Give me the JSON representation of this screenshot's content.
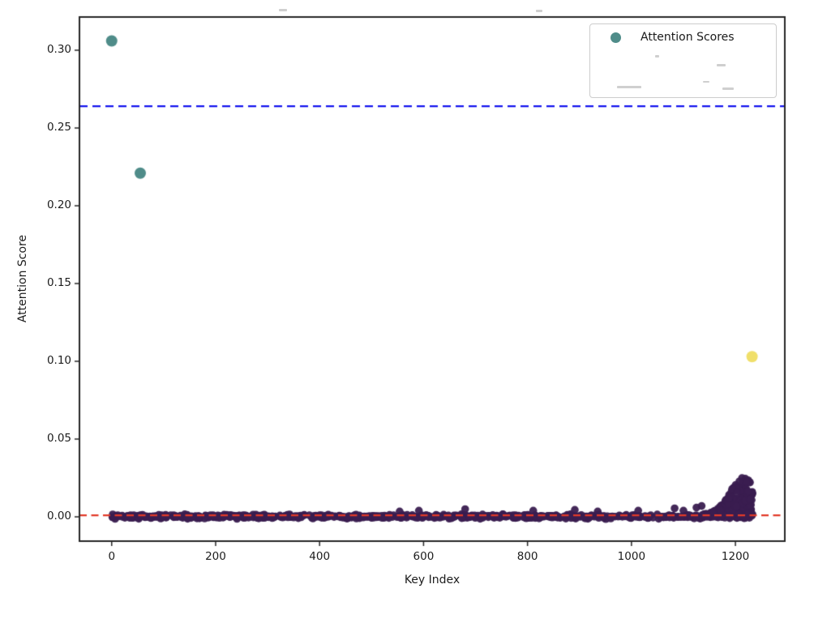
{
  "chart_data": {
    "type": "scatter",
    "title": "",
    "xlabel": "Key Index",
    "ylabel": "Attention Score",
    "xlim": [
      -62,
      1295
    ],
    "ylim": [
      -0.0156,
      0.3214
    ],
    "grid": false,
    "xticks": [
      0,
      200,
      400,
      600,
      800,
      1000,
      1200
    ],
    "xticklabels": [
      "0",
      "200",
      "400",
      "600",
      "800",
      "1000",
      "1200"
    ],
    "yticks": [
      0.0,
      0.05,
      0.1,
      0.15,
      0.2,
      0.25,
      0.3
    ],
    "yticklabels": [
      "0.00",
      "0.05",
      "0.10",
      "0.15",
      "0.20",
      "0.25",
      "0.30"
    ],
    "legend": {
      "position": "upper right",
      "entries": [
        {
          "label": "Attention Scores",
          "marker": "circle",
          "color": "#4f8c89"
        }
      ]
    },
    "threshold_lines": [
      {
        "y": 0.264,
        "style": "dashed",
        "color": "#1414ee"
      },
      {
        "y": 0.001,
        "style": "dashed",
        "color": "#e23a28"
      }
    ],
    "outlier_points": [
      {
        "x": 0,
        "y": 0.306,
        "color": "#4f8c89"
      },
      {
        "x": 55,
        "y": 0.221,
        "color": "#4f8c89"
      },
      {
        "x": 1232,
        "y": 0.103,
        "color": "#f0df6a"
      }
    ],
    "mid_bumps": [
      [
        554,
        0.0035
      ],
      [
        591,
        0.004
      ],
      [
        680,
        0.005
      ],
      [
        811,
        0.004
      ],
      [
        891,
        0.0045
      ],
      [
        935,
        0.0035
      ],
      [
        1013,
        0.004
      ],
      [
        1083,
        0.0055
      ],
      [
        1100,
        0.004
      ],
      [
        1125,
        0.006
      ],
      [
        1135,
        0.007
      ]
    ],
    "dense_cluster": {
      "seed": 42,
      "band": {
        "count": 680,
        "x_min": 0,
        "x_max": 1232,
        "y_center": 0.0002,
        "y_amplitude": 0.0018
      },
      "tail": {
        "count": 270,
        "x_min": 1138,
        "x_max": 1233,
        "peak_x": 1216,
        "peak_amp": 0.0245,
        "sigma": 26,
        "base": 0.0015
      }
    },
    "colors": {
      "cluster": "#3a1d50",
      "outlier_teal": "#4f8c89",
      "outlier_yellow": "#f0df6a",
      "threshold_blue": "#1414ee",
      "threshold_red": "#e23a28",
      "spine": "#262626",
      "text": "#1c1c1c",
      "legend_border": "#cccccc"
    },
    "marker_px": {
      "cluster_radius": 4.8,
      "outlier_radius": 7
    }
  }
}
